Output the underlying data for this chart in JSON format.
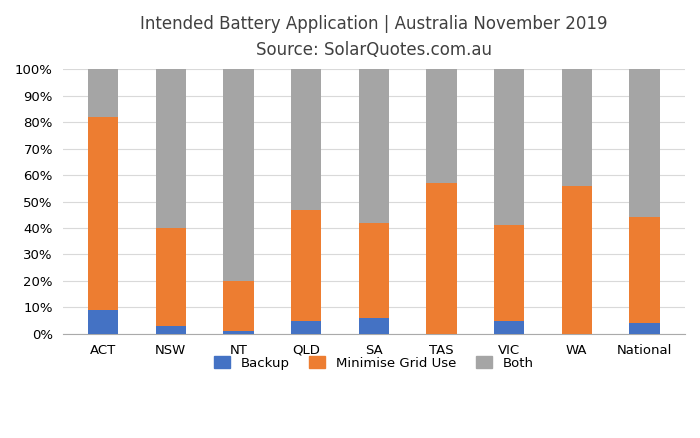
{
  "categories": [
    "ACT",
    "NSW",
    "NT",
    "QLD",
    "SA",
    "TAS",
    "VIC",
    "WA",
    "National"
  ],
  "backup": [
    9,
    3,
    1,
    5,
    6,
    0,
    5,
    0,
    4
  ],
  "minimise": [
    73,
    37,
    19,
    42,
    36,
    57,
    36,
    56,
    40
  ],
  "both": [
    18,
    60,
    80,
    53,
    58,
    43,
    59,
    44,
    56
  ],
  "backup_color": "#4472c4",
  "minimise_color": "#ed7d31",
  "both_color": "#a5a5a5",
  "title_line1": "Intended Battery Application | Australia November 2019",
  "title_line2": "Source: SolarQuotes.com.au",
  "ylabel_ticks": [
    "0%",
    "10%",
    "20%",
    "30%",
    "40%",
    "50%",
    "60%",
    "70%",
    "80%",
    "90%",
    "100%"
  ],
  "legend_labels": [
    "Backup",
    "Minimise Grid Use",
    "Both"
  ],
  "background_color": "#ffffff",
  "grid_color": "#d9d9d9",
  "title_color": "#404040",
  "bar_width": 0.45
}
